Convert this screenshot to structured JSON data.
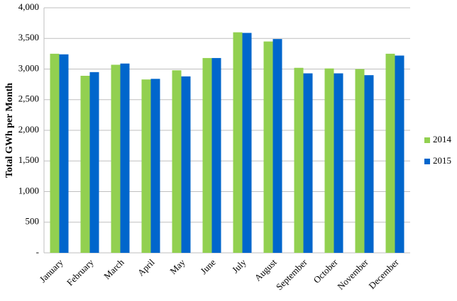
{
  "chart_data": {
    "type": "bar",
    "y_label": "Total GWh per Month",
    "categories": [
      "January",
      "February",
      "March",
      "April",
      "May",
      "June",
      "July",
      "August",
      "September",
      "October",
      "November",
      "December"
    ],
    "series": [
      {
        "name": "2014",
        "color": "#92d050",
        "values": [
          3250,
          2890,
          3070,
          2830,
          2980,
          3180,
          3600,
          3450,
          3020,
          3010,
          3000,
          3250
        ]
      },
      {
        "name": "2015",
        "color": "#0066cc",
        "values": [
          3240,
          2950,
          3090,
          2840,
          2880,
          3180,
          3590,
          3490,
          2930,
          2930,
          2900,
          3220
        ]
      }
    ],
    "ylim": [
      0,
      4000
    ],
    "yticks": [
      {
        "value": 0,
        "label": "-"
      },
      500,
      {
        "value": 1000,
        "label": "1,000"
      },
      {
        "value": 1500,
        "label": "1,500"
      },
      {
        "value": 2000,
        "label": "2,000"
      },
      {
        "value": 2500,
        "label": "2,500"
      },
      {
        "value": 3000,
        "label": "3,000"
      },
      {
        "value": 3500,
        "label": "3,500"
      },
      {
        "value": 4000,
        "label": "4,000"
      }
    ],
    "grid": true,
    "legend": "right"
  }
}
